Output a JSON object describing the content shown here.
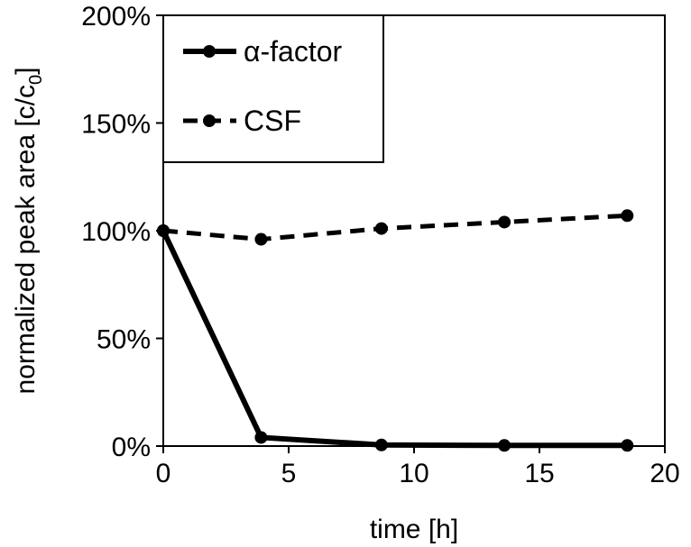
{
  "chart_data": {
    "type": "line",
    "title": "",
    "xlabel": "time [h]",
    "ylabel_main": "normalized peak area [c/c",
    "ylabel_sub": "0",
    "ylabel_end": "]",
    "xlim": [
      0,
      20
    ],
    "ylim": [
      0,
      200
    ],
    "x_ticks": [
      0,
      5,
      10,
      15,
      20
    ],
    "x_tick_labels": [
      "0",
      "5",
      "10",
      "15",
      "20"
    ],
    "y_ticks": [
      0,
      50,
      100,
      150,
      200
    ],
    "y_tick_labels": [
      "0%",
      "50%",
      "100%",
      "150%",
      "200%"
    ],
    "grid": false,
    "legend_position": "top-left",
    "series": [
      {
        "name": "α-factor",
        "style": "solid",
        "color": "#000000",
        "x": [
          0,
          3.9,
          8.7,
          13.6,
          18.5
        ],
        "values": [
          100,
          4,
          0.5,
          0.3,
          0.3
        ]
      },
      {
        "name": "CSF",
        "style": "dashed",
        "color": "#000000",
        "x": [
          0,
          3.9,
          8.7,
          13.6,
          18.5
        ],
        "values": [
          100,
          96,
          101,
          104,
          107
        ]
      }
    ]
  }
}
